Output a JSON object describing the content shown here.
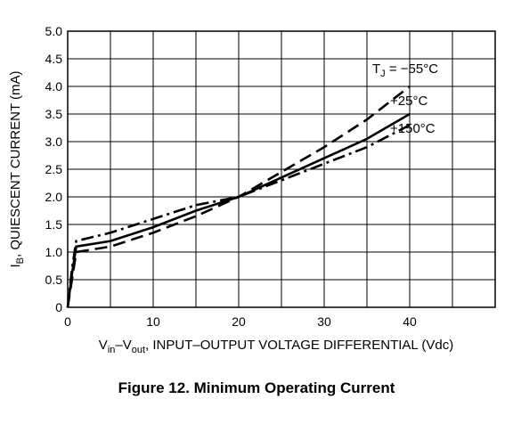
{
  "caption": "Figure 12. Minimum Operating Current",
  "chart_data": {
    "type": "line",
    "title": "",
    "xlabel": {
      "main": "V",
      "sub1": "in",
      "mid": "–V",
      "sub2": "out",
      "rest": ", INPUT–OUTPUT VOLTAGE DIFFERENTIAL (Vdc)"
    },
    "ylabel": {
      "main": "I",
      "sub": "B",
      "rest": ", QUIESCENT CURRENT (mA)"
    },
    "xlim": [
      0,
      50
    ],
    "ylim": [
      0,
      5.0
    ],
    "x_ticks": [
      0,
      10,
      20,
      30,
      40
    ],
    "x_tick_labels": [
      "0",
      "10",
      "20",
      "30",
      "40"
    ],
    "y_ticks": [
      0,
      0.5,
      1.0,
      1.5,
      2.0,
      2.5,
      3.0,
      3.5,
      4.0,
      4.5,
      5.0
    ],
    "y_tick_labels": [
      "0",
      "0.5",
      "1.0",
      "1.5",
      "2.0",
      "2.5",
      "3.0",
      "3.5",
      "4.0",
      "4.5",
      "5.0"
    ],
    "grid": true,
    "series": [
      {
        "name": "TJ = −55°C",
        "label_parts": {
          "main": "T",
          "sub": "J",
          "rest": " = −55°C"
        },
        "style": "dash",
        "x": [
          0,
          0.5,
          1.0,
          5,
          10,
          15,
          20,
          25,
          30,
          35,
          40
        ],
        "y": [
          0,
          0.5,
          1.0,
          1.1,
          1.35,
          1.65,
          2.0,
          2.45,
          2.9,
          3.4,
          4.0
        ]
      },
      {
        "name": "+25°C",
        "label_parts": {
          "main": "+25°C",
          "sub": "",
          "rest": ""
        },
        "style": "solid",
        "x": [
          0,
          0.5,
          1.0,
          5,
          10,
          15,
          20,
          25,
          30,
          35,
          40
        ],
        "y": [
          0,
          0.6,
          1.1,
          1.2,
          1.45,
          1.75,
          2.0,
          2.35,
          2.7,
          3.05,
          3.5
        ]
      },
      {
        "name": "+150°C",
        "label_parts": {
          "main": "+150°C",
          "sub": "",
          "rest": ""
        },
        "style": "dashdot",
        "x": [
          0,
          0.5,
          1.0,
          5,
          10,
          15,
          20,
          25,
          30,
          35,
          40
        ],
        "y": [
          0,
          0.7,
          1.2,
          1.35,
          1.6,
          1.85,
          2.0,
          2.3,
          2.6,
          2.9,
          3.3
        ]
      }
    ]
  }
}
